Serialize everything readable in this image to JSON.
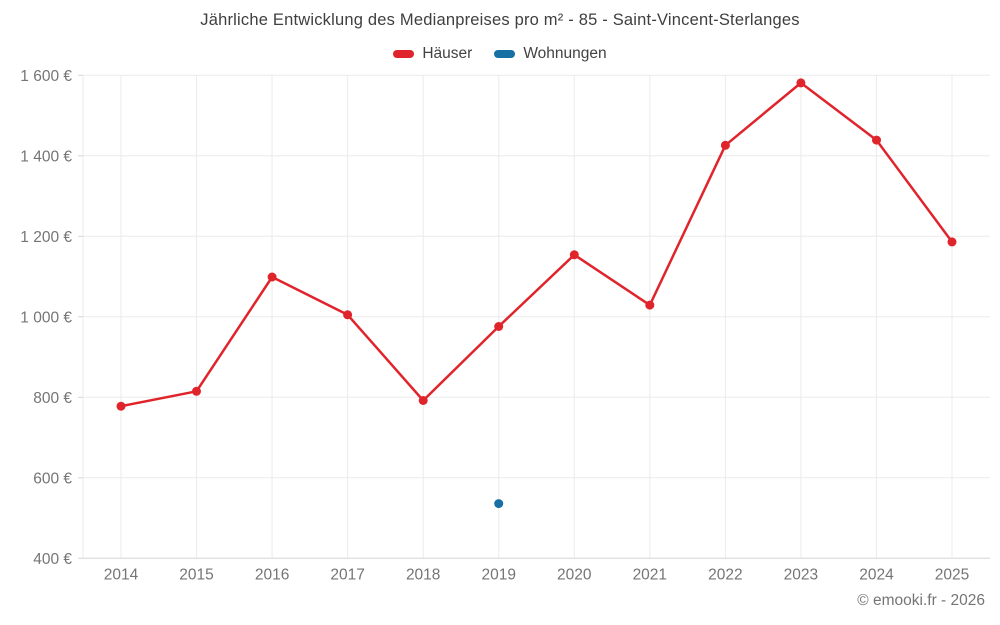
{
  "title": "Jährliche Entwicklung des Medianpreises pro m² - 85 - Saint-Vincent-Sterlanges",
  "copyright": {
    "text": "© emooki.fr - 2026"
  },
  "colors": {
    "hauser": "#e0242b",
    "wohnungen": "#1670a4",
    "grid": "#ebebeb",
    "axis": "#d6d6d6",
    "tick_text": "#757575",
    "title_text": "#3f3f3f",
    "legend_text": "#424242"
  },
  "chart_data": {
    "type": "line",
    "title": "Jährliche Entwicklung des Medianpreises pro m² - 85 - Saint-Vincent-Sterlanges",
    "xlabel": "",
    "ylabel": "",
    "categories": [
      "2014",
      "2015",
      "2016",
      "2017",
      "2018",
      "2019",
      "2020",
      "2021",
      "2022",
      "2023",
      "2024",
      "2025"
    ],
    "series": [
      {
        "id": "hauser",
        "name": "Häuser",
        "color": "#e0242b",
        "marker": "circle",
        "values": [
          778,
          815,
          1099,
          1005,
          792,
          976,
          1154,
          1029,
          1426,
          1581,
          1439,
          1186
        ]
      },
      {
        "id": "wohnungen",
        "name": "Wohnungen",
        "color": "#1670a4",
        "marker": "circle",
        "values": [
          null,
          null,
          null,
          null,
          null,
          536,
          null,
          null,
          null,
          null,
          null,
          null
        ]
      }
    ],
    "ylim": [
      400,
      1600
    ],
    "yticks": [
      400,
      600,
      800,
      1000,
      1200,
      1400,
      1600
    ],
    "ytick_labels": [
      "400 €",
      "600 €",
      "800 €",
      "1 000 €",
      "1 200 €",
      "1 400 €",
      "1 600 €"
    ],
    "currency_suffix": " €",
    "grid": true,
    "legend_position": "top"
  }
}
